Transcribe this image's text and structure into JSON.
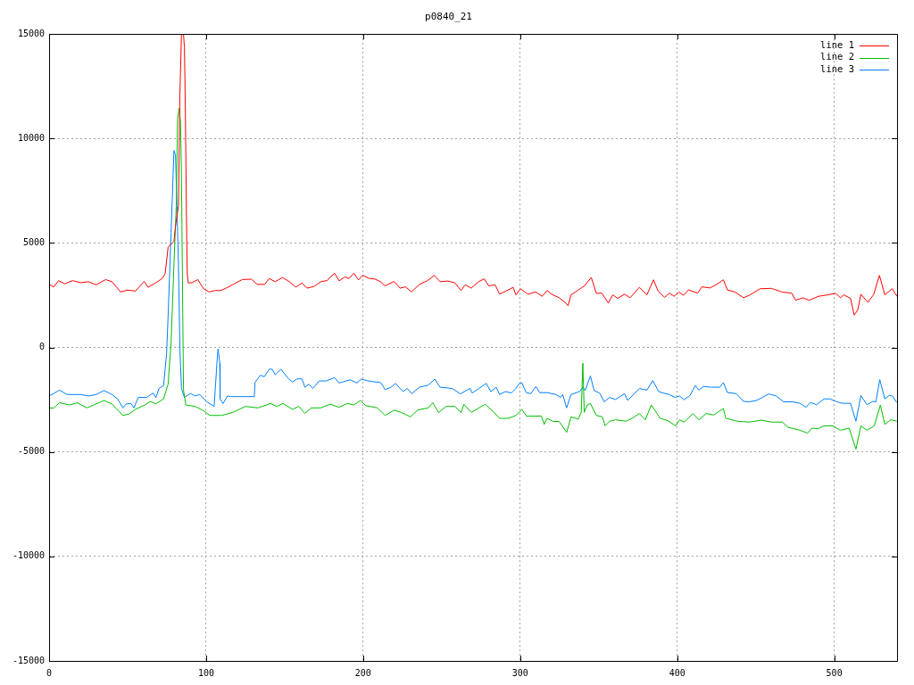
{
  "chart_data": {
    "type": "line",
    "title": "p0840_21",
    "xlim": [
      0,
      540
    ],
    "xticks": [
      0,
      100,
      200,
      300,
      400,
      500
    ],
    "ylim": [
      -15000,
      15000
    ],
    "yticks": [
      -15000,
      -10000,
      -5000,
      0,
      5000,
      10000,
      15000
    ],
    "grid": true,
    "legend": "top right",
    "marker": "none",
    "series": [
      {
        "name": "line 1",
        "color": "#ff0000",
        "x": [
          0,
          3,
          6,
          10,
          15,
          20,
          25,
          30,
          36,
          40,
          45.5,
          50,
          55,
          60.6,
          63,
          68,
          72,
          73.9,
          75.8,
          79.5,
          80.5,
          82.4,
          83.3,
          84.3,
          85.6,
          86.2,
          86.8,
          87.5,
          88,
          88.6,
          91,
          94.7,
          98.5,
          102,
          105.8,
          109,
          113.6,
          118,
          123,
          128.8,
          132.6,
          137.3,
          140.2,
          144,
          148.7,
          153,
          157.2,
          161,
          164.2,
          168.6,
          173.3,
          177,
          181.8,
          184.7,
          188.5,
          191,
          194.1,
          197,
          199.8,
          204,
          207.4,
          211,
          213.9,
          219.7,
          223.5,
          227,
          230.8,
          235.8,
          241,
          245.3,
          249,
          254,
          258.5,
          262.3,
          265,
          268.9,
          273.7,
          277.1,
          280,
          284,
          286.9,
          291,
          295.5,
          297.3,
          300.2,
          305,
          309.7,
          314,
          317.2,
          320,
          324.8,
          328.6,
          330.5,
          332.4,
          335.2,
          340.9,
          345.3,
          348.5,
          352,
          356.1,
          359,
          362,
          366.5,
          370,
          375.9,
          380.7,
          384.9,
          387.9,
          392,
          395,
          398,
          401,
          404,
          407.2,
          413,
          415.7,
          421,
          425.2,
          429.4,
          432,
          437,
          442.2,
          446,
          452.7,
          460,
          467,
          473,
          475.4,
          480,
          484,
          490,
          496,
          501,
          504,
          506,
          510.4,
          512.7,
          515,
          517,
          521.4,
          525,
          528.8,
          532.2,
          536.9,
          540
        ],
        "values": [
          3020,
          2900,
          3200,
          3050,
          3200,
          3100,
          3150,
          3000,
          3250,
          3150,
          2660,
          2750,
          2700,
          3160,
          2880,
          3100,
          3300,
          3520,
          4800,
          5080,
          5800,
          6800,
          12060,
          15000,
          15000,
          14350,
          11200,
          6080,
          3520,
          3090,
          3100,
          3250,
          2800,
          2660,
          2730,
          2720,
          2870,
          3050,
          3250,
          3270,
          3020,
          3020,
          3300,
          3150,
          3350,
          3150,
          2890,
          3090,
          2840,
          2920,
          3160,
          3200,
          3560,
          3190,
          3380,
          3300,
          3560,
          3230,
          3450,
          3300,
          3280,
          3150,
          2950,
          3160,
          2840,
          2900,
          2660,
          3020,
          3200,
          3450,
          3150,
          3180,
          3090,
          2730,
          3000,
          2840,
          3160,
          3280,
          2950,
          3000,
          2560,
          2700,
          2880,
          2520,
          2810,
          2550,
          2660,
          2450,
          2730,
          2550,
          2380,
          2160,
          2000,
          2520,
          2660,
          2950,
          3350,
          2590,
          2600,
          2130,
          2520,
          2350,
          2550,
          2380,
          2880,
          2520,
          3240,
          2690,
          2400,
          2600,
          2450,
          2650,
          2500,
          2760,
          2600,
          2900,
          2850,
          3020,
          3240,
          2750,
          2650,
          2380,
          2500,
          2810,
          2830,
          2650,
          2600,
          2260,
          2380,
          2260,
          2450,
          2520,
          2590,
          2380,
          2520,
          2350,
          1550,
          1800,
          2550,
          2160,
          2520,
          3450,
          2520,
          2810,
          2450
        ]
      },
      {
        "name": "line 2",
        "color": "#00c000",
        "x": [
          0,
          3,
          6.6,
          13,
          18,
          24,
          35,
          40,
          47,
          51,
          55,
          61,
          64.4,
          68,
          72.9,
          75.8,
          77.7,
          79.5,
          81,
          81.8,
          82.8,
          83.7,
          84.3,
          85.2,
          85.6,
          87.1,
          93,
          98.5,
          102.3,
          110,
          117,
          125,
          133,
          141,
          145,
          149,
          155,
          159,
          162.9,
          167,
          173,
          179,
          184.5,
          190,
          194,
          198.3,
          201.6,
          209,
          214,
          219.7,
          224.4,
          230.1,
          234.8,
          241.5,
          244.3,
          248,
          252.8,
          258.5,
          262.3,
          264.2,
          268.9,
          273.7,
          277.8,
          283.4,
          286.9,
          292.6,
          297.3,
          301.1,
          304,
          313.5,
          315.3,
          317.2,
          321,
          324.8,
          329.6,
          332.4,
          337,
          338.9,
          339.9,
          340.8,
          342.8,
          344.7,
          348.5,
          352.3,
          354.1,
          357,
          360.7,
          367.4,
          371.2,
          375.9,
          379.7,
          383.5,
          389.2,
          393.9,
          399.1,
          401.5,
          404.4,
          410,
          413.8,
          418.5,
          423.3,
          429.4,
          430.9,
          438.5,
          446,
          453.6,
          460.3,
          466.9,
          470.6,
          478.2,
          483,
          485.8,
          489.6,
          493.4,
          499.1,
          503.8,
          509.5,
          513.8,
          517,
          520.8,
          525.5,
          529.4,
          532.2,
          536,
          539.8
        ],
        "values": [
          -2890,
          -2900,
          -2640,
          -2750,
          -2650,
          -2890,
          -2540,
          -2700,
          -3250,
          -3180,
          -2960,
          -2750,
          -2580,
          -2700,
          -2460,
          -1750,
          250,
          3940,
          6800,
          10930,
          11450,
          10780,
          8220,
          1100,
          -2040,
          -2750,
          -2820,
          -3030,
          -3250,
          -3250,
          -3110,
          -2820,
          -2890,
          -2680,
          -2820,
          -2680,
          -2960,
          -2820,
          -3150,
          -2890,
          -2890,
          -2710,
          -2860,
          -2680,
          -2750,
          -2540,
          -2780,
          -2890,
          -3250,
          -3000,
          -3110,
          -3320,
          -2990,
          -2890,
          -2640,
          -3110,
          -2820,
          -2820,
          -3110,
          -2720,
          -3110,
          -2890,
          -2720,
          -3110,
          -3390,
          -3390,
          -3250,
          -2960,
          -3290,
          -3280,
          -3680,
          -3390,
          -3540,
          -3540,
          -4060,
          -3320,
          -3430,
          -3100,
          -750,
          -3100,
          -2750,
          -2680,
          -3250,
          -3320,
          -3750,
          -3530,
          -3460,
          -3530,
          -3390,
          -3160,
          -3460,
          -2750,
          -3390,
          -3500,
          -3750,
          -3460,
          -3570,
          -3160,
          -3460,
          -3160,
          -3230,
          -2920,
          -3390,
          -3530,
          -3570,
          -3480,
          -3570,
          -3570,
          -3820,
          -3960,
          -4100,
          -3860,
          -3890,
          -3750,
          -3750,
          -3960,
          -3860,
          -4860,
          -3750,
          -3960,
          -3750,
          -2750,
          -3680,
          -3460,
          -3530
        ]
      },
      {
        "name": "line 3",
        "color": "#0080ff",
        "x": [
          0,
          3,
          6.6,
          11.4,
          20,
          25,
          30,
          35,
          40,
          43.6,
          47,
          49,
          52.1,
          54,
          56.8,
          62,
          66.3,
          68,
          70,
          72.9,
          74.8,
          75.8,
          77.7,
          79.5,
          80.5,
          81.4,
          82.4,
          83.3,
          84.3,
          86.2,
          90,
          93,
          96,
          100.4,
          105.1,
          107,
          107.6,
          108.7,
          108.9,
          110.8,
          113.6,
          115.5,
          130.7,
          131.1,
          134.5,
          137,
          140.2,
          142,
          144,
          147.7,
          152.5,
          155,
          158,
          161,
          162.9,
          165.5,
          168,
          172,
          176.5,
          181.8,
          184.7,
          189,
          192,
          196,
          198.9,
          203,
          211.2,
          214,
          217.8,
          220.6,
          225.4,
          228,
          231,
          235.8,
          241.5,
          245.6,
          249,
          256.8,
          261.9,
          268,
          269.4,
          273.7,
          278.4,
          281.3,
          284.7,
          286.9,
          290.6,
          294.4,
          297.3,
          299.2,
          301,
          303.9,
          306.8,
          310,
          312.4,
          317.2,
          322.8,
          325.8,
          327.1,
          329.6,
          332.4,
          338,
          339.9,
          341.4,
          344.7,
          347.1,
          350.6,
          353.5,
          356.9,
          360.7,
          366.5,
          368.4,
          372.2,
          375.9,
          380.7,
          384.4,
          388.2,
          391,
          394.9,
          398.7,
          401.5,
          404.4,
          408.2,
          411.5,
          413.8,
          416.7,
          421.4,
          427.1,
          429.4,
          431.9,
          437.6,
          442.2,
          446,
          450.7,
          458.3,
          463,
          467.8,
          473.5,
          478.2,
          482,
          484.9,
          488.7,
          493.5,
          497.3,
          501,
          504.8,
          510.4,
          513.8,
          517,
          520.8,
          524.6,
          526.5,
          529,
          532.2,
          535.1,
          537,
          539.8
        ],
        "values": [
          -2320,
          -2200,
          -2040,
          -2250,
          -2250,
          -2320,
          -2250,
          -2060,
          -2250,
          -2460,
          -2890,
          -2700,
          -2680,
          -2890,
          -2390,
          -2390,
          -2180,
          -2400,
          -1960,
          -1820,
          -330,
          1520,
          5510,
          9430,
          9220,
          6800,
          3940,
          -40,
          -1960,
          -2390,
          -2200,
          -2320,
          -2250,
          -2600,
          -2820,
          -610,
          -70,
          -750,
          -2460,
          -2680,
          -2320,
          -2350,
          -2350,
          -1680,
          -1330,
          -1400,
          -1040,
          -1040,
          -1300,
          -1040,
          -1500,
          -1650,
          -1500,
          -1500,
          -1900,
          -1760,
          -1960,
          -1600,
          -1600,
          -1440,
          -1700,
          -1600,
          -1550,
          -1700,
          -1510,
          -1600,
          -1680,
          -2010,
          -1900,
          -1720,
          -2110,
          -1960,
          -2210,
          -1900,
          -1800,
          -1510,
          -1900,
          -1960,
          -2220,
          -1960,
          -2180,
          -1960,
          -1720,
          -2110,
          -1900,
          -2250,
          -2110,
          -2180,
          -1960,
          -1750,
          -1680,
          -2160,
          -2210,
          -1860,
          -2160,
          -2160,
          -2250,
          -2390,
          -2250,
          -2890,
          -2250,
          -2100,
          -1900,
          -2060,
          -1360,
          -2060,
          -2180,
          -2600,
          -2390,
          -2490,
          -2210,
          -2530,
          -2250,
          -1960,
          -2040,
          -1580,
          -2110,
          -2180,
          -2250,
          -2390,
          -2320,
          -2500,
          -2290,
          -1820,
          -2040,
          -1860,
          -1900,
          -1900,
          -1680,
          -2150,
          -2210,
          -2580,
          -2600,
          -2530,
          -2220,
          -2320,
          -2600,
          -2600,
          -2670,
          -2860,
          -2630,
          -2740,
          -2460,
          -2460,
          -2580,
          -2670,
          -2670,
          -3530,
          -2300,
          -2740,
          -2580,
          -2600,
          -1540,
          -2460,
          -2290,
          -2320,
          -2630
        ]
      }
    ]
  }
}
